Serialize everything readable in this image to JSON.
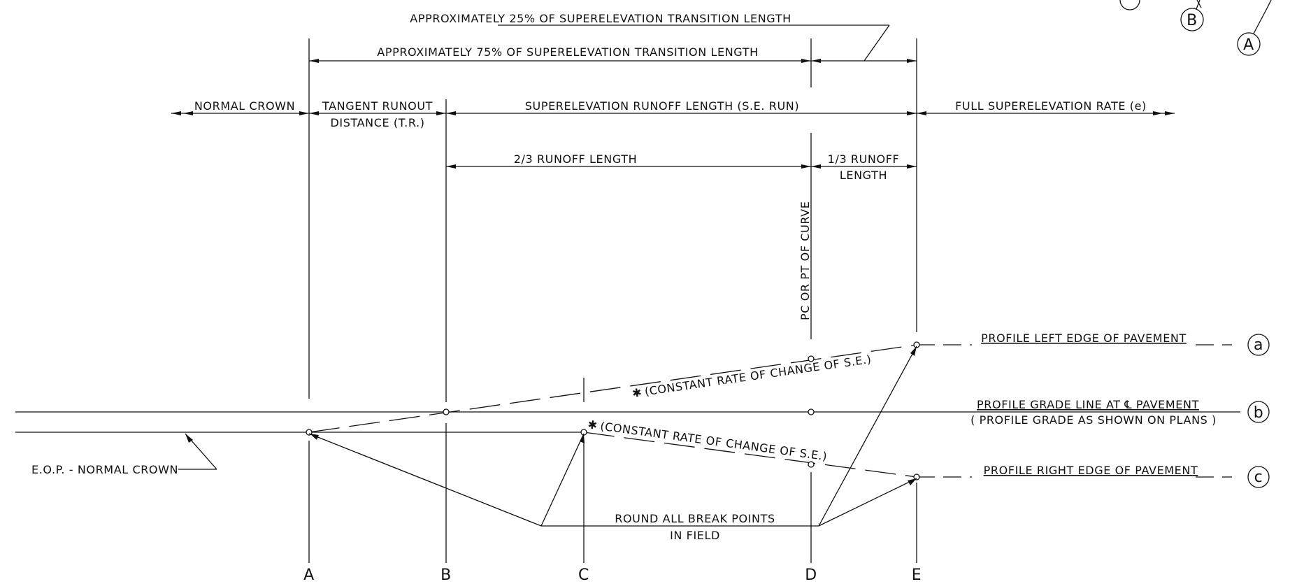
{
  "dimensions": {
    "approx_25": "APPROXIMATELY 25% OF SUPERELEVATION TRANSITION LENGTH",
    "approx_75": "APPROXIMATELY 75% OF SUPERELEVATION TRANSITION LENGTH",
    "normal_crown": "NORMAL CROWN",
    "tangent_runout_1": "TANGENT RUNOUT",
    "tangent_runout_2": "DISTANCE (T.R.)",
    "se_runoff": "SUPERELEVATION RUNOFF LENGTH (S.E. RUN)",
    "full_se": "FULL SUPERELEVATION RATE (e)",
    "two_thirds": "2/3 RUNOFF LENGTH",
    "one_third_1": "1/3 RUNOFF",
    "one_third_2": "LENGTH"
  },
  "labels": {
    "pc_pt": "PC OR PT OF CURVE",
    "constant_rate_upper": "(CONSTANT RATE OF CHANGE OF S.E.)",
    "constant_rate_lower": "(CONSTANT RATE OF CHANGE OF S.E.)",
    "asterisk": "✱",
    "eop": "E.O.P. - NORMAL CROWN",
    "round_1": "ROUND ALL BREAK POINTS",
    "round_2": "IN FIELD"
  },
  "profiles": {
    "left_edge": "PROFILE LEFT EDGE OF PAVEMENT",
    "grade_line": "PROFILE GRADE LINE AT ℄ PAVEMENT",
    "grade_note": "( PROFILE GRADE AS SHOWN ON PLANS )",
    "right_edge": "PROFILE RIGHT EDGE OF PAVEMENT"
  },
  "circle_keys": {
    "a": "a",
    "b": "b",
    "c": "c"
  },
  "sections": [
    "A",
    "B",
    "C",
    "D",
    "E"
  ],
  "corner_keys": {
    "a": "A",
    "b": "B"
  }
}
